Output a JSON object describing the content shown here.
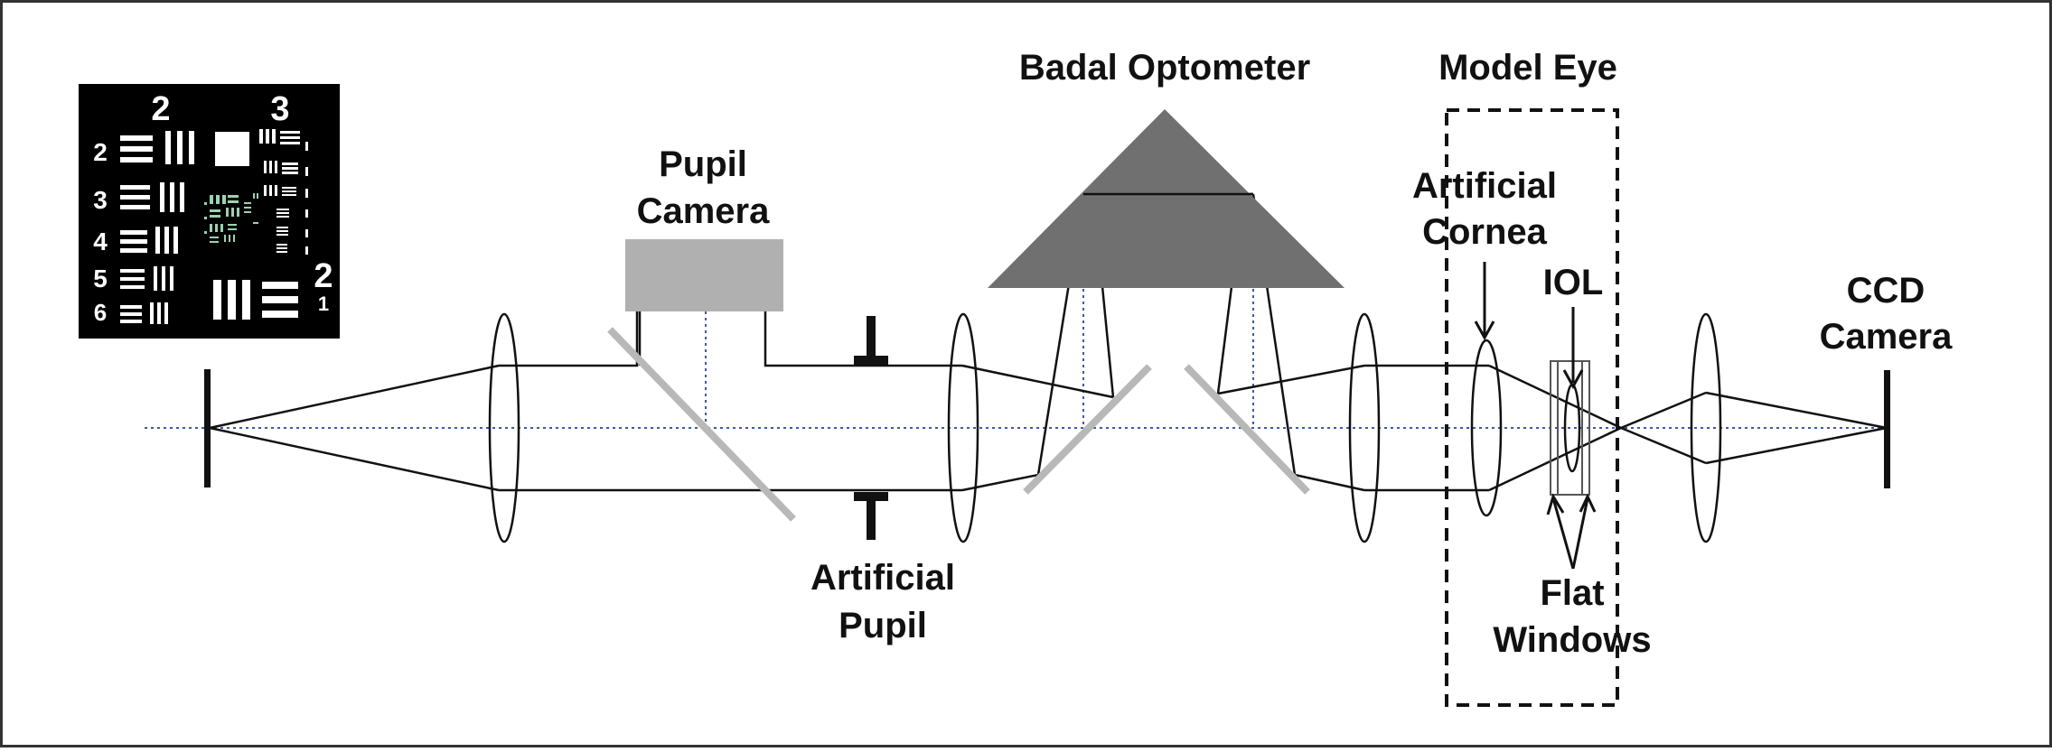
{
  "labels": {
    "pupil_camera": [
      "Pupil",
      "Camera"
    ],
    "badal_optometer": "Badal Optometer",
    "model_eye": "Model Eye",
    "artificial_cornea": [
      "Artificial",
      "Cornea"
    ],
    "iol": "IOL",
    "ccd_camera": [
      "CCD",
      "Camera"
    ],
    "artificial_pupil": [
      "Artificial",
      "Pupil"
    ],
    "flat_windows": [
      "Flat",
      "Windows"
    ]
  },
  "usaf_target": {
    "top_group_numbers": [
      "2",
      "3"
    ],
    "element_numbers": [
      "2",
      "3",
      "4",
      "5",
      "6"
    ],
    "right_numbers": [
      "2",
      "1"
    ]
  },
  "colors": {
    "ray_lines": "#111111",
    "optical_axis": "#3a5ba8",
    "beam_splitter": "#b8b8b8",
    "pupil_camera_box": "#b0b0b0",
    "badal_prism": "#707070",
    "target_background": "#000000"
  }
}
